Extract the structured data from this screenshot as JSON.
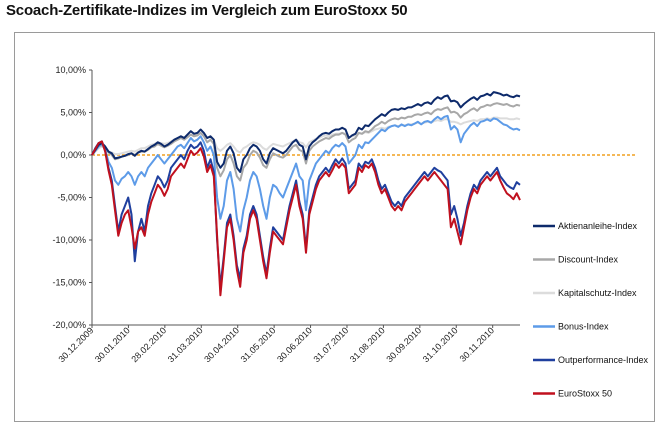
{
  "chart_data": {
    "type": "line",
    "title": "Scoach-Zertifikate-Indizes im Vergleich zum EuroStoxx 50",
    "xlabel": "",
    "ylabel": "",
    "ylim": [
      -20,
      10
    ],
    "yticks": [
      "10,00%",
      "5,00%",
      "0,00%",
      "-5,00%",
      "-10,00%",
      "-15,00%",
      "-20,00%"
    ],
    "xticks": [
      "30.12.2009",
      "30.01.2010",
      "28.02.2010",
      "31.03.2010",
      "30.04.2010",
      "31.05.2010",
      "30.06.2010",
      "31.07.2010",
      "31.08.2010",
      "30.09.2010",
      "31.10.2010",
      "30.11.2010"
    ],
    "grid": false,
    "legend_position": "right",
    "zero_line_color": "#f0a020",
    "x": [
      0,
      0.1,
      0.2,
      0.3,
      0.4,
      0.5,
      0.6,
      0.7,
      0.8,
      0.9,
      1.0,
      1.1,
      1.2,
      1.3,
      1.4,
      1.5,
      1.6,
      1.7,
      1.8,
      1.9,
      2.0,
      2.1,
      2.2,
      2.3,
      2.4,
      2.5,
      2.6,
      2.7,
      2.8,
      2.9,
      3.0,
      3.1,
      3.2,
      3.3,
      3.4,
      3.5,
      3.6,
      3.7,
      3.8,
      3.9,
      4.0,
      4.1,
      4.2,
      4.3,
      4.4,
      4.5,
      4.6,
      4.7,
      4.8,
      4.9,
      5.0,
      5.1,
      5.2,
      5.3,
      5.4,
      5.5,
      5.6,
      5.7,
      5.8,
      5.9,
      6.0,
      6.1,
      6.2,
      6.3,
      6.4,
      6.5,
      6.6,
      6.7,
      6.8,
      6.9,
      7.0,
      7.1,
      7.2,
      7.3,
      7.4,
      7.5,
      7.6,
      7.7,
      7.8,
      7.9,
      8.0,
      8.1,
      8.2,
      8.3,
      8.4,
      8.5,
      8.6,
      8.7,
      8.8,
      8.9,
      9.0,
      9.1,
      9.2,
      9.3,
      9.4,
      9.5,
      9.6,
      9.7,
      9.8,
      9.9,
      10.0,
      10.1,
      10.2,
      10.3,
      10.4,
      10.5,
      10.6,
      10.7,
      10.8,
      10.9,
      11.0,
      11.1,
      11.2,
      11.3,
      11.4,
      11.5,
      11.6,
      11.7,
      11.8,
      11.9,
      12.0,
      12.1,
      12.2,
      12.3,
      12.4,
      12.5,
      12.6,
      12.7,
      12.8,
      12.9,
      13.0
    ],
    "series": [
      {
        "name": "Aktienanleihe-Index",
        "color": "#0d2a6b",
        "values": [
          0,
          0.6,
          1.2,
          1.4,
          1.0,
          0.4,
          0.2,
          -0.4,
          -0.3,
          -0.2,
          -0.1,
          0.1,
          0.2,
          -0.1,
          0.3,
          0.5,
          0.4,
          0.7,
          1.0,
          1.2,
          1.5,
          1.3,
          1.0,
          1.2,
          1.5,
          1.8,
          2.0,
          2.2,
          2.0,
          2.4,
          2.8,
          2.5,
          2.6,
          3.0,
          2.6,
          2.0,
          2.2,
          1.8,
          -0.8,
          -1.5,
          -1.0,
          0.5,
          1.0,
          0.2,
          -1.5,
          -2.0,
          -0.5,
          0.0,
          0.8,
          1.2,
          1.0,
          0.5,
          -0.5,
          -1.0,
          0.2,
          0.8,
          0.6,
          0.4,
          0.2,
          0.5,
          1.0,
          1.5,
          1.8,
          1.2,
          1.0,
          -0.5,
          1.0,
          1.5,
          1.8,
          2.2,
          2.5,
          2.6,
          2.5,
          2.8,
          3.0,
          3.0,
          3.2,
          3.0,
          2.0,
          2.3,
          2.5,
          3.2,
          3.0,
          3.5,
          3.4,
          3.8,
          4.2,
          4.5,
          4.8,
          4.6,
          5.0,
          5.3,
          5.4,
          5.3,
          5.5,
          5.4,
          5.6,
          5.6,
          5.8,
          6.0,
          5.8,
          6.1,
          6.2,
          6.0,
          6.5,
          6.8,
          6.6,
          6.9,
          7.0,
          6.3,
          6.4,
          6.2,
          5.6,
          6.0,
          6.3,
          6.6,
          6.8,
          6.5,
          6.9,
          7.0,
          7.2,
          7.0,
          7.4,
          7.3,
          7.2,
          7.0,
          7.1,
          6.9,
          6.8,
          7.0,
          6.9
        ]
      },
      {
        "name": "Discount-Index",
        "color": "#a8a8a8",
        "values": [
          0,
          0.5,
          1.0,
          1.2,
          0.9,
          0.3,
          0.0,
          -0.5,
          -0.4,
          -0.2,
          -0.1,
          0.0,
          0.2,
          0.0,
          0.3,
          0.4,
          0.4,
          0.6,
          0.9,
          1.0,
          1.3,
          1.1,
          0.9,
          1.1,
          1.3,
          1.6,
          1.8,
          2.0,
          1.8,
          2.1,
          2.4,
          2.2,
          2.3,
          2.6,
          2.2,
          1.5,
          1.8,
          1.3,
          -1.5,
          -2.5,
          -1.8,
          -0.5,
          0.0,
          -1.0,
          -2.5,
          -3.0,
          -1.5,
          -1.0,
          0.0,
          0.5,
          0.3,
          -0.3,
          -1.2,
          -1.5,
          -0.5,
          0.2,
          0.0,
          -0.2,
          -0.3,
          0.0,
          0.5,
          1.0,
          1.2,
          0.6,
          0.4,
          -1.0,
          0.5,
          1.0,
          1.3,
          1.6,
          1.8,
          2.0,
          1.9,
          2.2,
          2.4,
          2.4,
          2.6,
          2.4,
          1.5,
          1.8,
          2.0,
          2.6,
          2.5,
          2.8,
          2.7,
          3.0,
          3.4,
          3.6,
          3.9,
          3.7,
          4.0,
          4.2,
          4.3,
          4.2,
          4.4,
          4.3,
          4.5,
          4.5,
          4.7,
          4.8,
          4.7,
          4.9,
          5.0,
          4.8,
          5.2,
          5.4,
          5.3,
          5.5,
          5.6,
          5.0,
          5.1,
          4.9,
          4.4,
          4.8,
          5.0,
          5.3,
          5.5,
          5.2,
          5.6,
          5.7,
          5.9,
          5.8,
          6.0,
          6.1,
          6.0,
          5.9,
          6.0,
          5.8,
          5.7,
          5.9,
          5.8
        ]
      },
      {
        "name": "Kapitalschutz-Index",
        "color": "#dcdcdc",
        "values": [
          0,
          0.4,
          0.8,
          1.0,
          0.8,
          0.4,
          0.3,
          0.1,
          0.1,
          0.2,
          0.3,
          0.4,
          0.5,
          0.4,
          0.6,
          0.8,
          0.8,
          1.0,
          1.2,
          1.3,
          1.5,
          1.4,
          1.3,
          1.4,
          1.6,
          1.8,
          2.0,
          2.1,
          2.0,
          2.2,
          2.4,
          2.3,
          2.4,
          2.6,
          2.4,
          2.0,
          2.1,
          1.8,
          0.8,
          0.5,
          0.8,
          1.2,
          1.4,
          1.0,
          0.5,
          0.3,
          0.8,
          1.0,
          1.3,
          1.5,
          1.4,
          1.2,
          0.8,
          0.6,
          1.0,
          1.3,
          1.2,
          1.1,
          1.0,
          1.2,
          1.4,
          1.6,
          1.8,
          1.5,
          1.4,
          0.9,
          1.5,
          1.7,
          1.9,
          2.0,
          2.2,
          2.3,
          2.2,
          2.4,
          2.5,
          2.5,
          2.6,
          2.5,
          2.1,
          2.2,
          2.3,
          2.6,
          2.5,
          2.7,
          2.6,
          2.8,
          3.0,
          3.1,
          3.2,
          3.1,
          3.3,
          3.4,
          3.5,
          3.4,
          3.5,
          3.5,
          3.6,
          3.6,
          3.7,
          3.8,
          3.7,
          3.8,
          3.9,
          3.8,
          4.0,
          4.1,
          4.0,
          4.2,
          4.2,
          3.9,
          3.9,
          3.8,
          3.6,
          3.8,
          3.9,
          4.0,
          4.1,
          4.0,
          4.2,
          4.2,
          4.3,
          4.2,
          4.4,
          4.4,
          4.3,
          4.3,
          4.3,
          4.2,
          4.2,
          4.3,
          4.2
        ]
      },
      {
        "name": "Bonus-Index",
        "color": "#5d9be8",
        "values": [
          0,
          0.5,
          1.0,
          1.3,
          0.6,
          -0.8,
          -1.5,
          -3.0,
          -3.5,
          -2.8,
          -2.5,
          -2.0,
          -2.5,
          -3.5,
          -2.5,
          -2.0,
          -2.5,
          -1.5,
          -1.0,
          -0.5,
          0.0,
          -0.5,
          -1.0,
          -0.5,
          0.0,
          0.5,
          1.0,
          1.2,
          0.8,
          1.4,
          2.0,
          1.6,
          1.8,
          2.2,
          1.5,
          0.5,
          1.0,
          0.0,
          -5.0,
          -7.5,
          -6.0,
          -3.0,
          -2.0,
          -4.0,
          -7.5,
          -9.0,
          -6.5,
          -5.0,
          -3.0,
          -2.0,
          -2.5,
          -4.0,
          -6.0,
          -7.5,
          -5.0,
          -3.5,
          -3.8,
          -4.5,
          -5.0,
          -4.0,
          -3.0,
          -2.0,
          -1.0,
          -2.5,
          -3.0,
          -6.5,
          -3.0,
          -2.0,
          -1.0,
          -0.5,
          0.0,
          0.5,
          0.2,
          0.8,
          1.2,
          1.0,
          1.4,
          1.0,
          -1.0,
          -0.5,
          0.0,
          1.2,
          0.8,
          1.5,
          1.4,
          1.8,
          2.2,
          2.6,
          3.0,
          2.8,
          3.2,
          3.4,
          3.5,
          3.3,
          3.6,
          3.4,
          3.6,
          3.5,
          3.7,
          3.9,
          3.6,
          3.9,
          4.0,
          3.8,
          4.2,
          4.5,
          4.2,
          4.5,
          4.6,
          3.0,
          3.4,
          3.0,
          1.5,
          2.5,
          3.0,
          3.5,
          3.8,
          3.4,
          3.9,
          4.0,
          4.2,
          4.0,
          4.3,
          4.2,
          3.9,
          3.6,
          3.5,
          3.2,
          3.0,
          3.1,
          2.9
        ]
      },
      {
        "name": "Outperformance-Index",
        "color": "#1f3f9e",
        "values": [
          0,
          0.8,
          1.4,
          1.6,
          0.5,
          -1.5,
          -3.0,
          -6.0,
          -9.0,
          -7.0,
          -6.0,
          -5.0,
          -7.0,
          -12.5,
          -9.0,
          -7.5,
          -9.0,
          -6.0,
          -4.5,
          -3.5,
          -2.5,
          -3.0,
          -3.8,
          -3.0,
          -1.5,
          -1.0,
          -0.5,
          0.0,
          -0.5,
          0.5,
          1.2,
          0.8,
          1.0,
          1.5,
          0.5,
          -1.5,
          -0.5,
          -2.0,
          -10.0,
          -15.5,
          -12.0,
          -8.0,
          -7.0,
          -9.5,
          -13.0,
          -14.5,
          -11.0,
          -9.5,
          -7.0,
          -6.0,
          -7.0,
          -9.5,
          -12.0,
          -14.0,
          -11.0,
          -8.5,
          -9.0,
          -9.5,
          -10.0,
          -8.0,
          -6.0,
          -4.5,
          -3.0,
          -5.5,
          -7.0,
          -11.0,
          -6.5,
          -5.0,
          -3.5,
          -2.5,
          -2.0,
          -1.5,
          -2.0,
          -1.2,
          -0.5,
          -1.0,
          -0.4,
          -1.0,
          -4.0,
          -3.5,
          -3.0,
          -1.0,
          -1.5,
          -0.8,
          -1.0,
          -0.5,
          -1.5,
          -3.0,
          -4.0,
          -3.5,
          -4.5,
          -5.5,
          -6.0,
          -5.5,
          -6.0,
          -5.0,
          -4.5,
          -4.0,
          -3.5,
          -3.0,
          -2.5,
          -2.0,
          -2.5,
          -2.0,
          -1.5,
          -1.8,
          -2.0,
          -2.5,
          -3.0,
          -7.0,
          -6.0,
          -7.5,
          -9.5,
          -8.0,
          -6.0,
          -4.5,
          -3.5,
          -4.0,
          -3.0,
          -2.5,
          -2.0,
          -2.5,
          -2.0,
          -1.5,
          -2.5,
          -3.0,
          -3.5,
          -3.8,
          -4.0,
          -3.2,
          -3.5
        ]
      },
      {
        "name": "EuroStoxx 50",
        "color": "#c0101e",
        "values": [
          0,
          0.7,
          1.4,
          1.6,
          0.4,
          -1.8,
          -3.5,
          -6.5,
          -9.5,
          -8.0,
          -7.0,
          -6.5,
          -8.5,
          -11.0,
          -9.0,
          -8.5,
          -9.5,
          -7.0,
          -5.5,
          -4.5,
          -3.5,
          -4.0,
          -4.8,
          -4.0,
          -2.5,
          -2.0,
          -1.5,
          -1.0,
          -1.5,
          -0.5,
          0.5,
          0.0,
          0.3,
          0.8,
          -0.2,
          -2.0,
          -1.2,
          -2.5,
          -9.5,
          -16.5,
          -12.5,
          -8.5,
          -7.5,
          -10.0,
          -13.5,
          -15.5,
          -11.5,
          -10.0,
          -7.5,
          -6.5,
          -7.5,
          -10.0,
          -12.5,
          -14.5,
          -11.5,
          -9.0,
          -9.5,
          -10.0,
          -10.5,
          -8.5,
          -6.5,
          -5.0,
          -3.5,
          -6.0,
          -7.5,
          -11.5,
          -7.0,
          -5.5,
          -4.0,
          -3.0,
          -2.5,
          -2.0,
          -2.5,
          -1.8,
          -1.0,
          -1.5,
          -1.0,
          -1.5,
          -4.5,
          -4.0,
          -3.5,
          -1.5,
          -2.0,
          -1.2,
          -1.5,
          -1.0,
          -2.0,
          -3.5,
          -4.5,
          -4.0,
          -5.0,
          -6.0,
          -6.5,
          -6.0,
          -6.5,
          -5.5,
          -5.0,
          -4.5,
          -4.0,
          -3.5,
          -3.0,
          -2.5,
          -3.0,
          -2.5,
          -2.0,
          -2.5,
          -3.0,
          -3.5,
          -4.0,
          -8.5,
          -7.5,
          -9.0,
          -10.5,
          -8.5,
          -6.5,
          -5.0,
          -4.0,
          -4.5,
          -3.5,
          -3.0,
          -2.5,
          -3.0,
          -2.5,
          -2.0,
          -3.0,
          -3.8,
          -4.5,
          -4.8,
          -5.2,
          -4.5,
          -5.3
        ]
      }
    ]
  }
}
